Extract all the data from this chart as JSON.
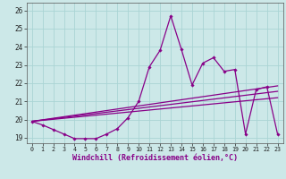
{
  "xlabel": "Windchill (Refroidissement éolien,°C)",
  "background_color": "#cce8e8",
  "line_color": "#880088",
  "grid_color": "#aad4d4",
  "xlim": [
    -0.5,
    23.5
  ],
  "ylim": [
    18.7,
    26.4
  ],
  "yticks": [
    19,
    20,
    21,
    22,
    23,
    24,
    25,
    26
  ],
  "xticks": [
    0,
    1,
    2,
    3,
    4,
    5,
    6,
    7,
    8,
    9,
    10,
    11,
    12,
    13,
    14,
    15,
    16,
    17,
    18,
    19,
    20,
    21,
    22,
    23
  ],
  "main_x": [
    0,
    1,
    2,
    3,
    4,
    5,
    6,
    7,
    8,
    9,
    10,
    11,
    12,
    13,
    14,
    15,
    16,
    17,
    18,
    19,
    20,
    21,
    22,
    23
  ],
  "main_y": [
    19.9,
    19.7,
    19.45,
    19.2,
    18.95,
    18.95,
    18.95,
    19.2,
    19.5,
    20.1,
    21.0,
    22.9,
    23.8,
    25.7,
    23.85,
    21.9,
    23.1,
    23.4,
    22.65,
    22.75,
    19.2,
    21.65,
    21.8,
    19.2
  ],
  "trend1_start": 19.9,
  "trend1_end": 21.85,
  "trend2_start": 19.9,
  "trend2_end": 21.55,
  "trend3_start": 19.9,
  "trend3_end": 21.2,
  "xlabel_fontsize": 6,
  "tick_fontsize": 5.5
}
